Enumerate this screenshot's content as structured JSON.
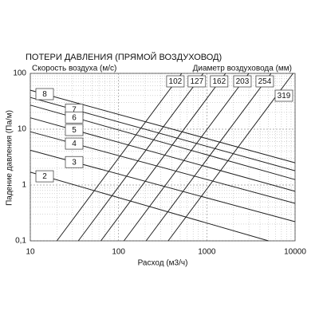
{
  "chart_data": {
    "type": "line",
    "title": "ПОТЕРИ ДАВЛЕНИЯ (ПРЯМОЙ ВОЗДУХОВОД)",
    "annotations": [
      "Скорость воздуха (м/с)",
      "Диаметр воздуховода (мм)"
    ],
    "xlabel": "Расход (м3/ч)",
    "ylabel": "Падение давления (Па/м)",
    "xlog": true,
    "ylog": true,
    "grid": true,
    "xlim": [
      10,
      10000
    ],
    "ylim": [
      0.1,
      100
    ],
    "xticks": [
      10,
      100,
      1000,
      10000
    ],
    "yticks": [
      {
        "value": 0.1,
        "label": "0,1"
      },
      1,
      10,
      100
    ],
    "series": [
      {
        "name": "8",
        "color": "#222",
        "x": [
          10,
          10000
        ],
        "values": [
          50,
          2.5
        ]
      },
      {
        "name": "7",
        "color": "#222",
        "x": [
          10,
          10000
        ],
        "values": [
          37,
          1.8
        ]
      },
      {
        "name": "6",
        "color": "#222",
        "x": [
          10,
          10000
        ],
        "values": [
          27,
          1.25
        ]
      },
      {
        "name": "5",
        "color": "#222",
        "x": [
          10,
          10000
        ],
        "values": [
          16,
          0.77
        ]
      },
      {
        "name": "4",
        "color": "#222",
        "x": [
          10,
          10000
        ],
        "values": [
          9,
          0.47
        ]
      },
      {
        "name": "3",
        "color": "#222",
        "x": [
          10,
          10000
        ],
        "values": [
          4.2,
          0.22
        ]
      },
      {
        "name": "2",
        "color": "#222",
        "x": [
          10,
          5000
        ],
        "values": [
          1.7,
          0.1
        ]
      },
      {
        "name": "102",
        "color": "#222",
        "x": [
          20,
          520
        ],
        "values": [
          0.1,
          100
        ]
      },
      {
        "name": "127",
        "color": "#222",
        "x": [
          35,
          910
        ],
        "values": [
          0.1,
          100
        ]
      },
      {
        "name": "162",
        "color": "#222",
        "x": [
          63,
          1630
        ],
        "values": [
          0.1,
          100
        ]
      },
      {
        "name": "203",
        "color": "#222",
        "x": [
          115,
          2990
        ],
        "values": [
          0.1,
          100
        ]
      },
      {
        "name": "254",
        "color": "#222",
        "x": [
          205,
          5350
        ],
        "values": [
          0.1,
          100
        ]
      },
      {
        "name": "319",
        "color": "#222",
        "x": [
          365,
          9500
        ],
        "values": [
          0.1,
          100
        ]
      }
    ]
  }
}
